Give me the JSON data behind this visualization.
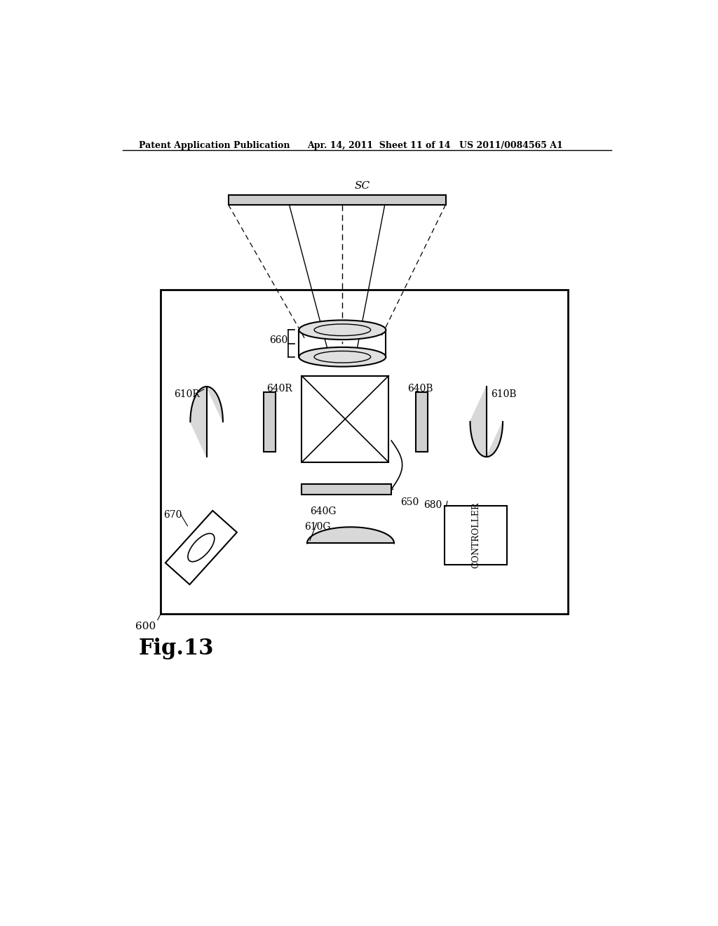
{
  "bg_color": "#ffffff",
  "header_left": "Patent Application Publication",
  "header_mid": "Apr. 14, 2011  Sheet 11 of 14",
  "header_right": "US 2011/0084565 A1",
  "fig_label": "Fig.13",
  "screen_label": "SC",
  "box_600_label": "600",
  "label_610R": "610R",
  "label_640R": "640R",
  "label_660": "660",
  "label_610B": "610B",
  "label_640B": "640B",
  "label_650": "650",
  "label_640G": "640G",
  "label_610G": "610G",
  "label_670": "670",
  "label_680": "680"
}
